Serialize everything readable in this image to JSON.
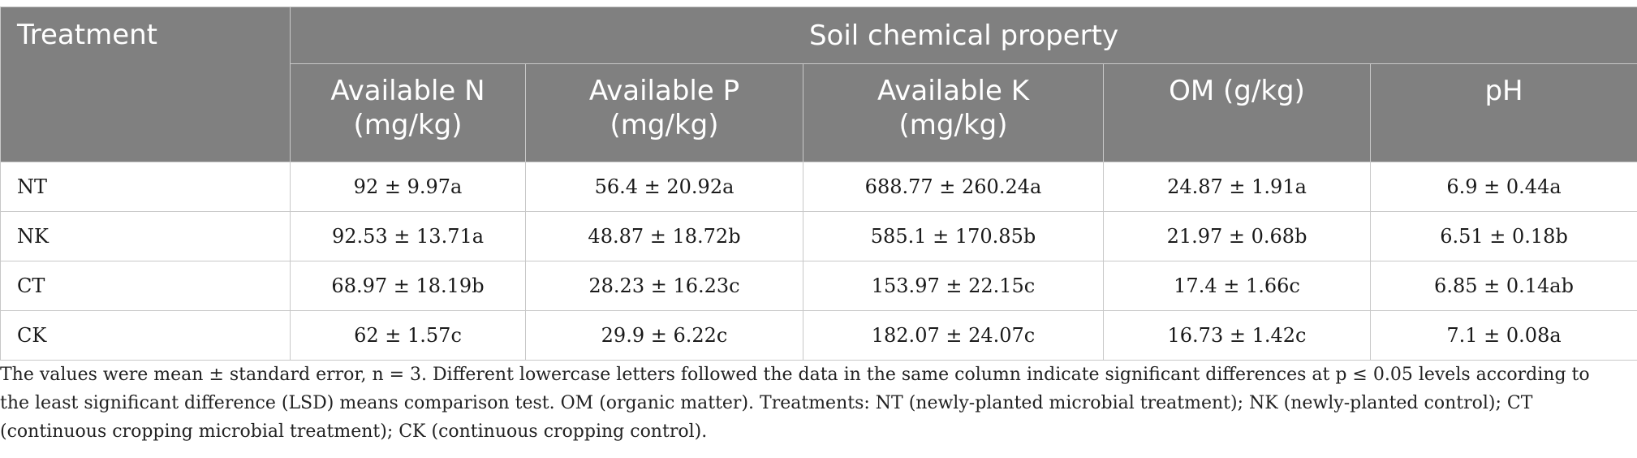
{
  "table": {
    "treatment_header": "Treatment",
    "group_header": "Soil chemical property",
    "columns": [
      {
        "line1": "Available N",
        "line2": "(mg/kg)"
      },
      {
        "line1": "Available P",
        "line2": "(mg/kg)"
      },
      {
        "line1": "Available K",
        "line2": "(mg/kg)"
      },
      {
        "line1": "OM (g/kg)",
        "line2": ""
      },
      {
        "line1": "pH",
        "line2": ""
      }
    ],
    "rows": [
      {
        "label": "NT",
        "cells": [
          "92 ± 9.97a",
          "56.4 ± 20.92a",
          "688.77 ± 260.24a",
          "24.87 ± 1.91a",
          "6.9 ± 0.44a"
        ]
      },
      {
        "label": "NK",
        "cells": [
          "92.53 ± 13.71a",
          "48.87 ± 18.72b",
          "585.1 ± 170.85b",
          "21.97 ± 0.68b",
          "6.51 ± 0.18b"
        ]
      },
      {
        "label": "CT",
        "cells": [
          "68.97 ± 18.19b",
          "28.23 ± 16.23c",
          "153.97 ± 22.15c",
          "17.4 ± 1.66c",
          "6.85 ± 0.14ab"
        ]
      },
      {
        "label": "CK",
        "cells": [
          "62 ± 1.57c",
          "29.9 ± 6.22c",
          "182.07 ± 24.07c",
          "16.73 ± 1.42c",
          "7.1 ± 0.08a"
        ]
      }
    ]
  },
  "footnote": {
    "text": "The values were mean ± standard error, n = 3. Different lowercase letters followed the data in the same column indicate significant differences at p ≤ 0.05 levels according to the least significant difference (LSD) means comparison test. OM (organic matter). Treatments: NT (newly-planted microbial treatment); NK (newly-planted control); CT (continuous cropping microbial treatment); CK (continuous cropping control)."
  },
  "colors": {
    "header_bg": "#808080",
    "header_text": "#ffffff",
    "border": "#c8c8c8"
  }
}
